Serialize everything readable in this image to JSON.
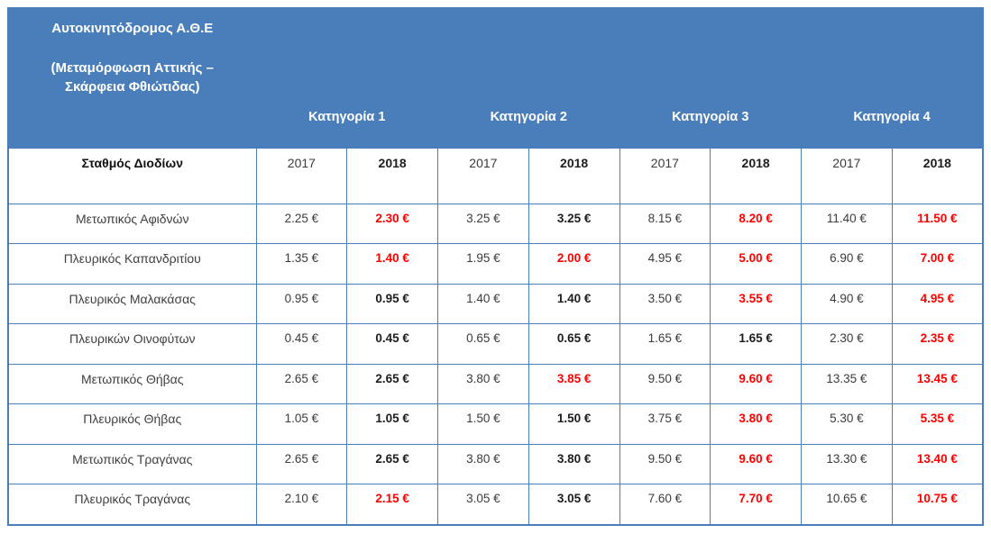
{
  "colors": {
    "header_bg": "#4a7ebb",
    "border": "#4a7ebb",
    "increase_text": "#ff0000",
    "normal_text": "#3b3b3b"
  },
  "table": {
    "title_line1": "Αυτοκινητόδρομος Α.Θ.Ε",
    "title_line2": "(Μεταμόρφωση Αττικής –",
    "title_line3": "Σκάρφεια Φθιώτιδας)",
    "categories": [
      "Κατηγορία  1",
      "Κατηγορία 2",
      "Κατηγορία 3",
      "Κατηγορία 4"
    ],
    "station_header": "Σταθμός Διοδίων",
    "year_headers": [
      "2017",
      "2018",
      "2017",
      "2018",
      "2017",
      "2018",
      "2017",
      "2018"
    ],
    "rows": [
      {
        "station": "Μετωπικός Αφιδνών",
        "cells": [
          {
            "text": "2.25 €",
            "up": false
          },
          {
            "text": "2.30 €",
            "up": true
          },
          {
            "text": "3.25 €",
            "up": false
          },
          {
            "text": "3.25 €",
            "up": false
          },
          {
            "text": "8.15 €",
            "up": false
          },
          {
            "text": "8.20 €",
            "up": true
          },
          {
            "text": "11.40 €",
            "up": false
          },
          {
            "text": "11.50 €",
            "up": true
          }
        ]
      },
      {
        "station": "Πλευρικός Καπανδριτίου",
        "cells": [
          {
            "text": "1.35 €",
            "up": false
          },
          {
            "text": "1.40 €",
            "up": true
          },
          {
            "text": "1.95 €",
            "up": false
          },
          {
            "text": "2.00 €",
            "up": true
          },
          {
            "text": "4.95 €",
            "up": false
          },
          {
            "text": "5.00 €",
            "up": true
          },
          {
            "text": "6.90 €",
            "up": false
          },
          {
            "text": "7.00 €",
            "up": true
          }
        ]
      },
      {
        "station": "Πλευρικός Μαλακάσας",
        "cells": [
          {
            "text": "0.95 €",
            "up": false
          },
          {
            "text": "0.95 €",
            "up": false
          },
          {
            "text": "1.40 €",
            "up": false
          },
          {
            "text": "1.40 €",
            "up": false
          },
          {
            "text": "3.50 €",
            "up": false
          },
          {
            "text": "3.55 €",
            "up": true
          },
          {
            "text": "4.90 €",
            "up": false
          },
          {
            "text": "4.95 €",
            "up": true
          }
        ]
      },
      {
        "station": "Πλευρικών Οινοφύτων",
        "cells": [
          {
            "text": "0.45 €",
            "up": false
          },
          {
            "text": "0.45 €",
            "up": false
          },
          {
            "text": "0.65 €",
            "up": false
          },
          {
            "text": "0.65 €",
            "up": false
          },
          {
            "text": "1.65 €",
            "up": false
          },
          {
            "text": "1.65 €",
            "up": false
          },
          {
            "text": "2.30 €",
            "up": false
          },
          {
            "text": "2.35 €",
            "up": true
          }
        ]
      },
      {
        "station": "Μετωπικός Θήβας",
        "cells": [
          {
            "text": "2.65 €",
            "up": false
          },
          {
            "text": "2.65 €",
            "up": false
          },
          {
            "text": "3.80 €",
            "up": false
          },
          {
            "text": "3.85 €",
            "up": true
          },
          {
            "text": "9.50 €",
            "up": false
          },
          {
            "text": "9.60 €",
            "up": true
          },
          {
            "text": "13.35 €",
            "up": false
          },
          {
            "text": "13.45 €",
            "up": true
          }
        ]
      },
      {
        "station": "Πλευρικός Θήβας",
        "cells": [
          {
            "text": "1.05 €",
            "up": false
          },
          {
            "text": "1.05 €",
            "up": false
          },
          {
            "text": "1.50 €",
            "up": false
          },
          {
            "text": "1.50 €",
            "up": false
          },
          {
            "text": "3.75 €",
            "up": false
          },
          {
            "text": "3.80 €",
            "up": true
          },
          {
            "text": "5.30 €",
            "up": false
          },
          {
            "text": "5.35 €",
            "up": true
          }
        ]
      },
      {
        "station": "Μετωπικός Τραγάνας",
        "cells": [
          {
            "text": "2.65 €",
            "up": false
          },
          {
            "text": "2.65 €",
            "up": false
          },
          {
            "text": "3.80 €",
            "up": false
          },
          {
            "text": "3.80 €",
            "up": false
          },
          {
            "text": "9.50 €",
            "up": false
          },
          {
            "text": "9.60 €",
            "up": true
          },
          {
            "text": "13.30 €",
            "up": false
          },
          {
            "text": "13.40 €",
            "up": true
          }
        ]
      },
      {
        "station": "Πλευρικός Τραγάνας",
        "cells": [
          {
            "text": "2.10 €",
            "up": false
          },
          {
            "text": "2.15 €",
            "up": true
          },
          {
            "text": "3.05 €",
            "up": false
          },
          {
            "text": "3.05 €",
            "up": false
          },
          {
            "text": "7.60 €",
            "up": false
          },
          {
            "text": "7.70 €",
            "up": true
          },
          {
            "text": "10.65 €",
            "up": false
          },
          {
            "text": "10.75 €",
            "up": true
          }
        ]
      }
    ]
  }
}
